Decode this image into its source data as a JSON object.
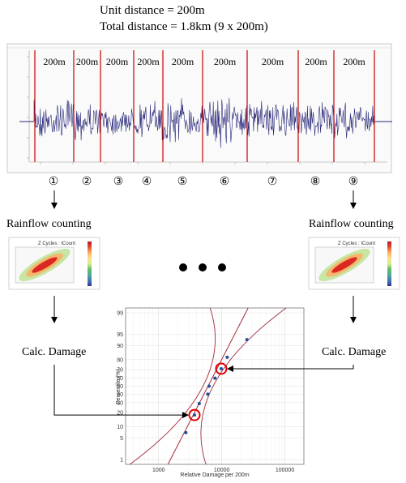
{
  "header": {
    "unit_distance": "Unit distance = 200m",
    "total_distance": "Total distance = 1.8km (9 x 200m)"
  },
  "segments": {
    "labels": [
      "200m",
      "200m",
      "200m",
      "200m",
      "200m",
      "200m",
      "200m",
      "200m",
      "200m"
    ],
    "numbers": [
      "①",
      "②",
      "③",
      "④",
      "⑤",
      "⑥",
      "⑦",
      "⑧",
      "⑨"
    ]
  },
  "process": {
    "left": {
      "rainflow": "Rainflow counting",
      "damage": "Calc. Damage"
    },
    "right": {
      "rainflow": "Rainflow counting",
      "damage": "Calc. Damage"
    },
    "ellipsis": "● ● ●"
  },
  "heatmap": {
    "title": "Z Cycles : ICount",
    "colors": [
      "#b2182b",
      "#d73027",
      "#f46d43",
      "#fdae61",
      "#fee08b",
      "#d9ef8b",
      "#a6d96a",
      "#66bd63",
      "#1a9850",
      "#4dac9b",
      "#4575b4",
      "#313695"
    ]
  },
  "chart_data": {
    "type": "scatter",
    "title": "",
    "xlabel": "Relative Damage per 200m",
    "ylabel": "Percentile (%)",
    "x_scale": "log",
    "xlim": [
      300,
      200000
    ],
    "y_scale": "normal-probability",
    "yticks": [
      1,
      5,
      10,
      20,
      30,
      40,
      50,
      60,
      70,
      80,
      90,
      95,
      99
    ],
    "xticks": [
      1000,
      10000,
      100000
    ],
    "xtick_labels": [
      "1000",
      "10000",
      "100000"
    ],
    "series": [
      {
        "points": [
          {
            "x": 2700,
            "y": 7
          },
          {
            "x": 3700,
            "y": 18
          },
          {
            "x": 4400,
            "y": 29
          },
          {
            "x": 6000,
            "y": 40
          },
          {
            "x": 6300,
            "y": 50
          },
          {
            "x": 7800,
            "y": 60
          },
          {
            "x": 9800,
            "y": 71
          },
          {
            "x": 12200,
            "y": 82
          },
          {
            "x": 25000,
            "y": 93
          }
        ],
        "color": "#1f4e9e"
      }
    ],
    "fit_line": {
      "color": "#a32a3a",
      "from": {
        "x": 2300,
        "y": 5
      },
      "to": {
        "x": 16000,
        "y": 95
      }
    },
    "highlighted_points": [
      {
        "x": 3700,
        "y": 18,
        "color": "#e00000"
      },
      {
        "x": 9800,
        "y": 71,
        "color": "#e00000"
      }
    ],
    "grid": true
  }
}
